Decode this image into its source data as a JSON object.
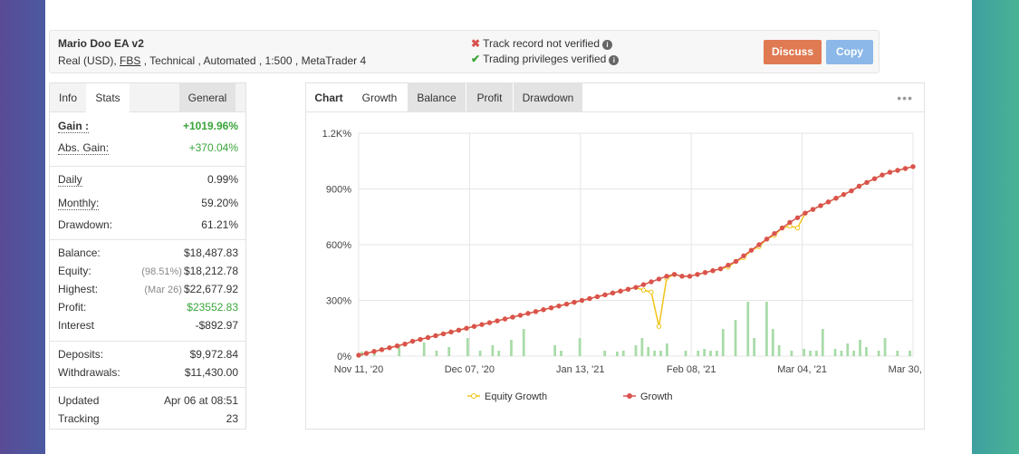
{
  "system": {
    "title": "Mario Doo EA v2",
    "subtitle_prefix": "Real (USD), ",
    "broker": "FBS",
    "subtitle_suffix": " , Technical , Automated , 1:500 , MetaTrader 4",
    "verify_track": "Track record not verified",
    "verify_trading": "Trading privileges verified",
    "discuss_label": "Discuss",
    "copy_label": "Copy"
  },
  "stats_tabs": [
    "Info",
    "Stats",
    "General"
  ],
  "stats": {
    "gain_label": "Gain :",
    "gain": "+1019.96%",
    "abs_gain_label": "Abs. Gain:",
    "abs_gain": "+370.04%",
    "daily_label": "Daily",
    "daily": "0.99%",
    "monthly_label": "Monthly:",
    "monthly": "59.20%",
    "drawdown_label": "Drawdown:",
    "drawdown": "61.21%",
    "balance_label": "Balance:",
    "balance": "$18,487.83",
    "equity_label": "Equity:",
    "equity_pct": "(98.51%)",
    "equity": "$18,212.78",
    "highest_label": "Highest:",
    "highest_date": "(Mar 26)",
    "highest": "$22,677.92",
    "profit_label": "Profit:",
    "profit": "$23552.83",
    "interest_label": "Interest",
    "interest": "-$892.97",
    "deposits_label": "Deposits:",
    "deposits": "$9,972.84",
    "withdrawals_label": "Withdrawals:",
    "withdrawals": "$11,430.00",
    "updated_label": "Updated",
    "updated": "Apr 06 at 08:51",
    "tracking_label": "Tracking",
    "tracking": "23"
  },
  "chart_tabs": [
    "Chart",
    "Growth",
    "Balance",
    "Profit",
    "Drawdown"
  ],
  "colors": {
    "growth": "#d9534f",
    "equity": "#f0c419",
    "bars": "#a8dba8",
    "green": "#3aa53a"
  },
  "chart_data": {
    "type": "line",
    "title": "",
    "xlabel": "",
    "ylabel": "",
    "ylim": [
      0,
      1200
    ],
    "y_ticks": [
      "0%",
      "300%",
      "600%",
      "900%",
      "1.2K%"
    ],
    "y_tick_values": [
      0,
      300,
      600,
      900,
      1200
    ],
    "x_ticks": [
      "Nov 11, '20",
      "Dec 07, '20",
      "Jan 13, '21",
      "Feb 08, '21",
      "Mar 04, '21",
      "Mar 30, '21"
    ],
    "legend": [
      "Equity Growth",
      "Growth"
    ],
    "series": [
      {
        "name": "Growth",
        "values": [
          5,
          15,
          25,
          35,
          45,
          55,
          65,
          80,
          90,
          100,
          110,
          120,
          130,
          140,
          150,
          160,
          170,
          180,
          190,
          200,
          210,
          220,
          230,
          240,
          250,
          260,
          270,
          280,
          290,
          300,
          310,
          320,
          330,
          340,
          350,
          360,
          370,
          385,
          400,
          415,
          430,
          440,
          430,
          430,
          440,
          450,
          460,
          470,
          490,
          510,
          540,
          570,
          600,
          630,
          660,
          690,
          720,
          745,
          770,
          790,
          810,
          830,
          850,
          870,
          890,
          915,
          935,
          955,
          975,
          990,
          1000,
          1010,
          1020
        ]
      },
      {
        "name": "Equity Growth",
        "values": [
          5,
          15,
          25,
          35,
          45,
          55,
          65,
          80,
          90,
          100,
          110,
          120,
          130,
          140,
          150,
          160,
          170,
          180,
          190,
          200,
          210,
          220,
          230,
          240,
          250,
          260,
          270,
          280,
          290,
          300,
          310,
          320,
          330,
          340,
          350,
          360,
          370,
          355,
          345,
          160,
          420,
          440,
          430,
          430,
          440,
          450,
          460,
          470,
          480,
          510,
          530,
          570,
          590,
          630,
          650,
          690,
          700,
          690,
          770,
          790,
          810,
          830,
          850,
          870,
          890,
          915,
          935,
          955,
          975,
          990,
          1000,
          1010,
          1020
        ]
      }
    ],
    "activity_bars": [
      5,
      0,
      8,
      0,
      0,
      0,
      12,
      0,
      0,
      0,
      15,
      0,
      6,
      0,
      10,
      0,
      0,
      20,
      0,
      6,
      0,
      12,
      6,
      0,
      18,
      0,
      30,
      0,
      0,
      0,
      0,
      12,
      6,
      0,
      0,
      20,
      0,
      0,
      0,
      6,
      0,
      5,
      6,
      0,
      12,
      20,
      10,
      6,
      6,
      14,
      0,
      0,
      6,
      0,
      6,
      8,
      6,
      6,
      30,
      0,
      40,
      0,
      60,
      20,
      0,
      60,
      30,
      12,
      0,
      6,
      0,
      8,
      6,
      6,
      30,
      0,
      8,
      6,
      14,
      6,
      18,
      10,
      0,
      6,
      20,
      0,
      6,
      0,
      6
    ]
  }
}
